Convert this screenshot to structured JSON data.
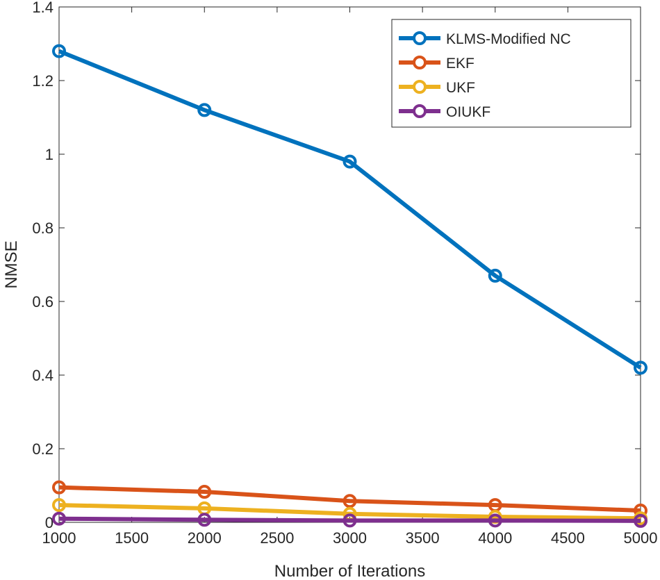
{
  "chart_data": {
    "type": "line",
    "title": "",
    "xlabel": "Number of Iterations",
    "ylabel": "NMSE",
    "x": [
      1000,
      2000,
      3000,
      4000,
      5000
    ],
    "xlim": [
      1000,
      5000
    ],
    "ylim": [
      0,
      1.4
    ],
    "xticks": [
      1000,
      1500,
      2000,
      2500,
      3000,
      3500,
      4000,
      4500,
      5000
    ],
    "yticks": [
      0,
      0.2,
      0.4,
      0.6,
      0.8,
      1,
      1.2,
      1.4
    ],
    "ytick_labels": [
      "0",
      "0.2",
      "0.4",
      "0.6",
      "0.8",
      "1",
      "1.2",
      "1.4"
    ],
    "grid": false,
    "legend_position": "top-right",
    "marker": "circle",
    "series": [
      {
        "name": "KLMS-Modified NC",
        "color": "#0072BD",
        "values": [
          1.28,
          1.12,
          0.98,
          0.67,
          0.42
        ]
      },
      {
        "name": "EKF",
        "color": "#D95319",
        "values": [
          0.095,
          0.083,
          0.058,
          0.047,
          0.032
        ]
      },
      {
        "name": "UKF",
        "color": "#EDB120",
        "values": [
          0.047,
          0.038,
          0.023,
          0.015,
          0.011
        ]
      },
      {
        "name": "OIUKF",
        "color": "#7E2F8E",
        "values": [
          0.01,
          0.007,
          0.005,
          0.005,
          0.004
        ]
      }
    ]
  }
}
